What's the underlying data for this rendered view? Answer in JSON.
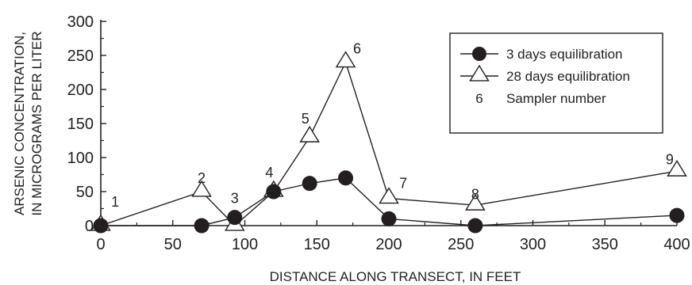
{
  "chart_data": {
    "type": "line",
    "xlabel": "DISTANCE ALONG TRANSECT, IN FEET",
    "ylabel_lines": [
      "ARSENIC CONCENTRATION,",
      "IN MICROGRAMS PER LITER"
    ],
    "xlim": [
      0,
      400
    ],
    "ylim": [
      0,
      300
    ],
    "xticks": [
      0,
      50,
      100,
      150,
      200,
      250,
      300,
      350,
      400
    ],
    "yticks": [
      0,
      50,
      100,
      150,
      200,
      250,
      300
    ],
    "grid": false,
    "legend_position": "top-right",
    "series": [
      {
        "name": "3 days equilibration",
        "marker": "filled-circle",
        "x": [
          0,
          70,
          93,
          120,
          145,
          170,
          200,
          260,
          400
        ],
        "y": [
          0,
          0,
          12,
          50,
          62,
          70,
          10,
          0,
          15
        ]
      },
      {
        "name": "28 days equilibration",
        "marker": "open-triangle",
        "x": [
          0,
          70,
          93,
          120,
          145,
          170,
          200,
          260,
          400
        ],
        "y": [
          0,
          50,
          0,
          50,
          130,
          240,
          40,
          30,
          80
        ]
      }
    ],
    "legend_key_label": "Sampler number",
    "legend_key_symbol": "6",
    "sampler_labels": [
      {
        "text": "1",
        "x": 10,
        "y": 35
      },
      {
        "text": "2",
        "x": 70,
        "y": 70
      },
      {
        "text": "3",
        "x": 93,
        "y": 40
      },
      {
        "text": "4",
        "x": 117,
        "y": 78
      },
      {
        "text": "5",
        "x": 142,
        "y": 157
      },
      {
        "text": "6",
        "x": 178,
        "y": 260
      },
      {
        "text": "7",
        "x": 210,
        "y": 62
      },
      {
        "text": "8",
        "x": 260,
        "y": 46
      },
      {
        "text": "9",
        "x": 395,
        "y": 97
      }
    ]
  }
}
